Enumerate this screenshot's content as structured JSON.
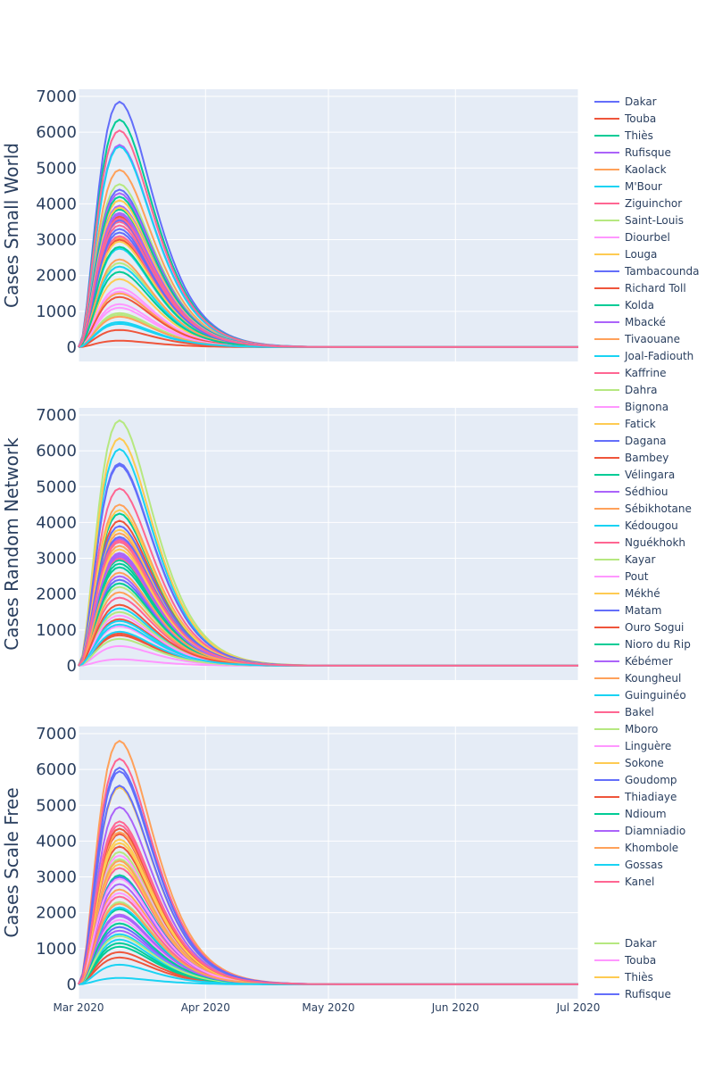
{
  "colors": {
    "palette": [
      "#636efa",
      "#EF553B",
      "#00cc96",
      "#ab63fa",
      "#FFA15A",
      "#19d3f3",
      "#FF6692",
      "#B6E880",
      "#FF97FF",
      "#FECB52"
    ],
    "plot_bg": "#e5ecf6",
    "grid": "#ffffff",
    "text": "#2a3f5f"
  },
  "legend": {
    "entries": [
      "Dakar",
      "Touba",
      "Thiès",
      "Rufisque",
      "Kaolack",
      "M'Bour",
      "Ziguinchor",
      "Saint-Louis",
      "Diourbel",
      "Louga",
      "Tambacounda",
      "Richard Toll",
      "Kolda",
      "Mbacké",
      "Tivaouane",
      "Joal-Fadiouth",
      "Kaffrine",
      "Dahra",
      "Bignona",
      "Fatick",
      "Dagana",
      "Bambey",
      "Vélingara",
      "Sédhiou",
      "Sébikhotane",
      "Kédougou",
      "Nguékhokh",
      "Kayar",
      "Pout",
      "Mékhé",
      "Matam",
      "Ouro Sogui",
      "Nioro du Rip",
      "Kébémer",
      "Koungheul",
      "Guinguinéo",
      "Bakel",
      "Mboro",
      "Linguère",
      "Sokone",
      "Goudomp",
      "Thiadiaye",
      "Ndioum",
      "Diamniadio",
      "Khombole",
      "Gossas",
      "Kanel"
    ],
    "entry_colors": [
      "#636efa",
      "#EF553B",
      "#00cc96",
      "#ab63fa",
      "#FFA15A",
      "#19d3f3",
      "#FF6692",
      "#B6E880",
      "#FF97FF",
      "#FECB52",
      "#636efa",
      "#EF553B",
      "#00cc96",
      "#ab63fa",
      "#FFA15A",
      "#19d3f3",
      "#FF6692",
      "#B6E880",
      "#FF97FF",
      "#FECB52",
      "#636efa",
      "#EF553B",
      "#00cc96",
      "#ab63fa",
      "#FFA15A",
      "#19d3f3",
      "#FF6692",
      "#B6E880",
      "#FF97FF",
      "#FECB52",
      "#636efa",
      "#EF553B",
      "#00cc96",
      "#ab63fa",
      "#FFA15A",
      "#19d3f3",
      "#FF6692",
      "#B6E880",
      "#FF97FF",
      "#FECB52",
      "#636efa",
      "#EF553B",
      "#00cc96",
      "#ab63fa",
      "#FFA15A",
      "#19d3f3",
      "#FF6692"
    ],
    "continued_entries": [
      "Dakar",
      "Touba",
      "Thiès",
      "Rufisque"
    ],
    "continued_colors": [
      "#B6E880",
      "#FF97FF",
      "#FECB52",
      "#636efa"
    ]
  },
  "chart_data": [
    {
      "type": "line",
      "ylabel": "Cases Small World",
      "ylim": [
        -400,
        7200
      ],
      "yticks": [
        0,
        1000,
        2000,
        3000,
        4000,
        5000,
        6000,
        7000
      ],
      "xlim": [
        "2020-03-01",
        "2020-07-01"
      ],
      "grid": true,
      "peak_date": "2020-03-11",
      "peaks": [
        6850,
        180,
        6350,
        5650,
        4950,
        5600,
        6050,
        4550,
        1200,
        4100,
        4400,
        3650,
        3850,
        4300,
        3050,
        2750,
        3500,
        2350,
        1550,
        1900,
        3300,
        3000,
        4200,
        3700,
        1500,
        2250,
        3100,
        950,
        1650,
        2950,
        3550,
        1400,
        2800,
        3950,
        2450,
        650,
        3400,
        900,
        1100,
        3900,
        3200,
        480,
        2100,
        3750,
        850,
        700,
        3600
      ]
    },
    {
      "type": "line",
      "ylabel": "Cases Random Network",
      "ylim": [
        -400,
        7200
      ],
      "yticks": [
        0,
        1000,
        2000,
        3000,
        4000,
        5000,
        6000,
        7000
      ],
      "xlim": [
        "2020-03-01",
        "2020-07-01"
      ],
      "grid": true,
      "peak_date": "2020-03-11",
      "peaks": [
        5650,
        4050,
        2950,
        3550,
        4500,
        6050,
        4950,
        6850,
        180,
        6350,
        5600,
        1300,
        4250,
        3100,
        3350,
        1600,
        3000,
        1500,
        550,
        4350,
        2400,
        900,
        2750,
        2500,
        3700,
        1250,
        1900,
        2200,
        1400,
        3800,
        3600,
        850,
        2300,
        3150,
        2050,
        950,
        3450,
        750,
        1100,
        3250,
        3900,
        1700,
        2850,
        3050,
        2600,
        1150,
        3500
      ]
    },
    {
      "type": "line",
      "ylabel": "Cases Scale Free",
      "ylim": [
        -400,
        7200
      ],
      "yticks": [
        0,
        1000,
        2000,
        3000,
        4000,
        5000,
        6000,
        7000
      ],
      "xlim": [
        "2020-03-01",
        "2020-07-01"
      ],
      "grid": true,
      "peak_date": "2020-03-11",
      "peaks": [
        6050,
        4200,
        2100,
        4950,
        6800,
        180,
        6300,
        3700,
        3600,
        5500,
        5550,
        750,
        3050,
        1900,
        4250,
        1250,
        4550,
        3500,
        1800,
        4050,
        1600,
        3850,
        1150,
        1500,
        2650,
        1400,
        3250,
        2300,
        2550,
        3350,
        3000,
        900,
        1050,
        2800,
        3450,
        2150,
        2450,
        1350,
        2950,
        3950,
        5950,
        4350,
        1700,
        1950,
        2250,
        550,
        4450
      ]
    }
  ],
  "xaxis": {
    "tick_labels": [
      "Mar 2020",
      "Apr 2020",
      "May 2020",
      "Jun 2020",
      "Jul 2020"
    ],
    "tick_dates": [
      "2020-03-01",
      "2020-04-01",
      "2020-05-01",
      "2020-06-01",
      "2020-07-01"
    ]
  }
}
